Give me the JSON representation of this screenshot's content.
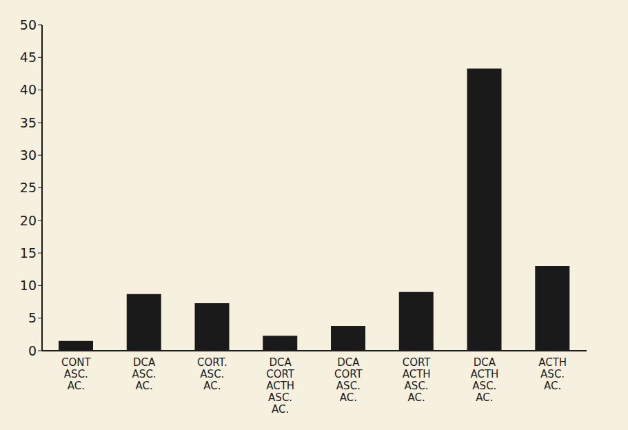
{
  "chart_data": {
    "type": "bar",
    "categories": [
      "CONT ASC. AC.",
      "DCA ASC. AC.",
      "CORT. ASC. AC.",
      "DCA CORT ACTH ASC. AC.",
      "DCA CORT ASC. AC.",
      "CORT ACTH ASC. AC.",
      "DCA ACTH ASC. AC.",
      "ACTH ASC. AC."
    ],
    "values": [
      1.5,
      8.7,
      7.3,
      2.3,
      3.8,
      9.0,
      43.3,
      13.0
    ],
    "color": "#1a1a1a",
    "ylim": [
      0,
      50
    ],
    "yticks": [
      0,
      5,
      10,
      15,
      20,
      25,
      30,
      35,
      40,
      45,
      50
    ],
    "grid": false
  }
}
